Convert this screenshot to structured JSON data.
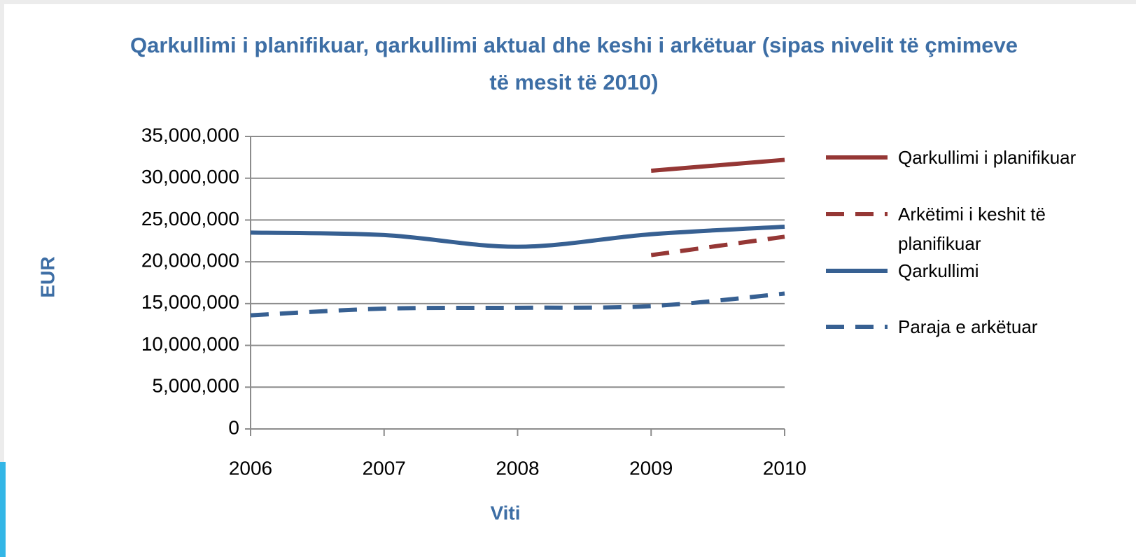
{
  "chart_data": {
    "type": "line",
    "title": "Qarkullimi i planifikuar, qarkullimi aktual dhe keshi i arkëtuar (sipas nivelit të çmimeve të mesit të 2010)",
    "x_label": "Viti",
    "y_label": "EUR",
    "categories": [
      "2006",
      "2007",
      "2008",
      "2009",
      "2010"
    ],
    "series": [
      {
        "name": "Qarkullimi i planifikuar",
        "color": "#953735",
        "dash": false,
        "values": [
          null,
          null,
          null,
          30900000,
          32200000
        ]
      },
      {
        "name": "Arkëtimi i keshit të planifikuar",
        "color": "#953735",
        "dash": true,
        "values": [
          null,
          null,
          null,
          20800000,
          23000000
        ]
      },
      {
        "name": "Qarkullimi",
        "color": "#376092",
        "dash": false,
        "values": [
          23500000,
          23200000,
          21800000,
          23300000,
          24200000
        ]
      },
      {
        "name": "Paraja e arkëtuar",
        "color": "#376092",
        "dash": true,
        "values": [
          13600000,
          14400000,
          14500000,
          14700000,
          16200000
        ]
      }
    ],
    "ylim": [
      0,
      35000000
    ],
    "yticks": [
      0,
      {
        "value": 5000000,
        "label": "5,000,000"
      },
      {
        "value": 10000000,
        "label": "10,000,000"
      },
      {
        "value": 15000000,
        "label": "15,000,000"
      },
      {
        "value": 20000000,
        "label": "20,000,000"
      },
      {
        "value": 25000000,
        "label": "25,000,000"
      },
      {
        "value": 30000000,
        "label": "30,000,000"
      },
      {
        "value": 35000000,
        "label": "35,000,000"
      }
    ],
    "grid": true,
    "legend": "right"
  }
}
